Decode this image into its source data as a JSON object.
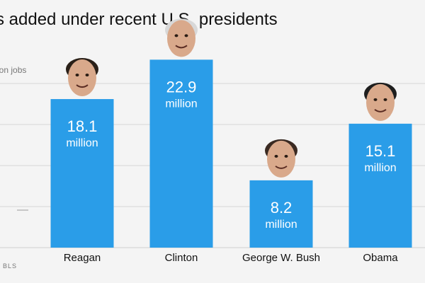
{
  "chart_data": {
    "type": "bar",
    "title": "s added under recent U.S. presidents",
    "ylabel": "ion jobs",
    "categories": [
      "Reagan",
      "Clinton",
      "George W. Bush",
      "Obama"
    ],
    "values": [
      18.1,
      22.9,
      8.2,
      15.1
    ],
    "value_labels": [
      "18.1",
      "22.9",
      "8.2",
      "15.1"
    ],
    "unit_label": "million",
    "ylim": [
      0,
      25
    ],
    "grid": true,
    "bar_color": "#2a9de8",
    "source": "BLS",
    "icons": [
      "reagan-face-icon",
      "clinton-face-icon",
      "bush-face-icon",
      "obama-face-icon"
    ]
  }
}
